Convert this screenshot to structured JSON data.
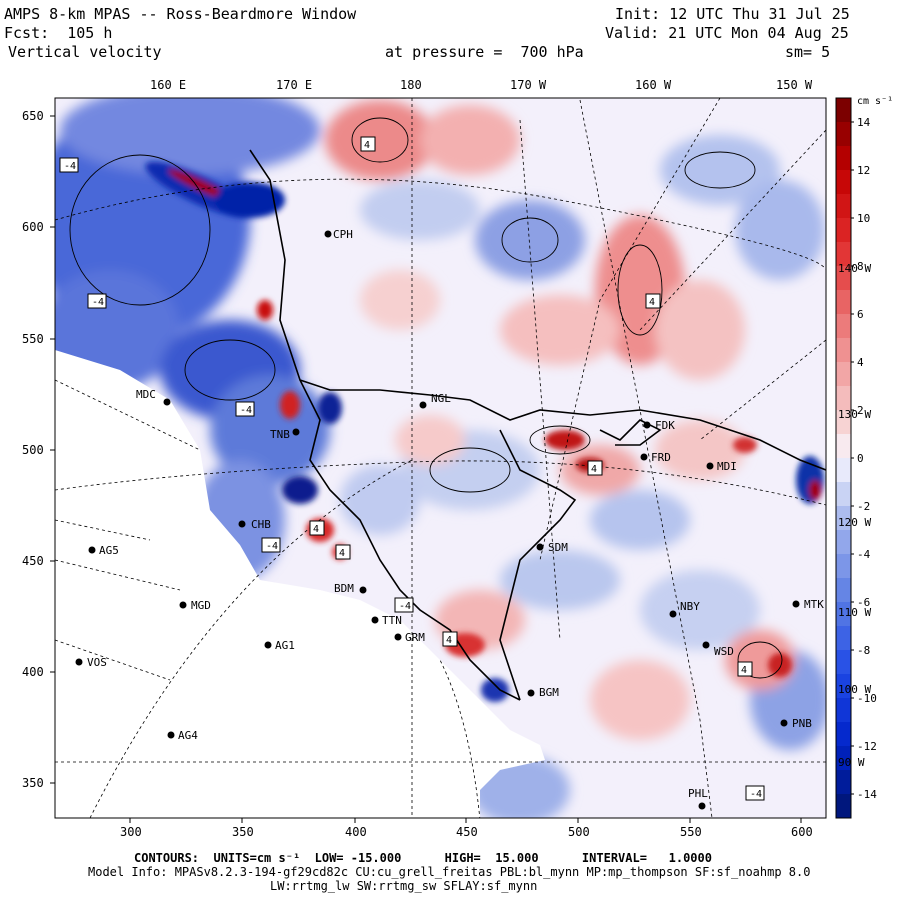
{
  "header": {
    "title": "AMPS 8-km MPAS -- Ross-Beardmore Window",
    "init": "Init: 12 UTC Thu 31 Jul 25",
    "fcst": "Fcst:  105 h",
    "valid": "Valid: 21 UTC Mon 04 Aug 25",
    "field": "Vertical velocity",
    "level": "at pressure =  700 hPa",
    "smooth": "sm= 5"
  },
  "map": {
    "lon_labels_top": [
      "160 E",
      "170 E",
      "180",
      "170 W",
      "160 W",
      "150 W"
    ],
    "lon_labels_right": [
      "140 W",
      "130 W",
      "120 W",
      "110 W",
      "100 W",
      "90 W"
    ],
    "x_ticks": [
      "300",
      "350",
      "400",
      "450",
      "500",
      "550",
      "600"
    ],
    "y_ticks": [
      "650",
      "600",
      "550",
      "500",
      "450",
      "400",
      "350"
    ],
    "stations": [
      {
        "id": "MDC"
      },
      {
        "id": "NGL"
      },
      {
        "id": "FDK"
      },
      {
        "id": "FRD"
      },
      {
        "id": "MDI"
      },
      {
        "id": "TNB"
      },
      {
        "id": "CHB"
      },
      {
        "id": "SDM"
      },
      {
        "id": "AG5"
      },
      {
        "id": "MGD"
      },
      {
        "id": "BDM"
      },
      {
        "id": "TTN"
      },
      {
        "id": "GRM"
      },
      {
        "id": "AG1"
      },
      {
        "id": "VOS"
      },
      {
        "id": "AG4"
      },
      {
        "id": "NBY"
      },
      {
        "id": "WSD"
      },
      {
        "id": "BGM"
      },
      {
        "id": "MTK"
      },
      {
        "id": "PNB"
      },
      {
        "id": "PHL"
      },
      {
        "id": "CPH"
      }
    ],
    "contour_labels": [
      "-4",
      "4"
    ],
    "colors": {
      "strong_up": "#8a0000",
      "up": "#e64545",
      "weak_up": "#f6c6c6",
      "neutral": "#f4f2ff",
      "weak_down": "#b8c6ee",
      "down": "#3b5fd6",
      "strong_down": "#001a9a",
      "no_data": "#ffffff"
    }
  },
  "colorbar": {
    "units": "cm s⁻¹",
    "labels": [
      "14",
      "12",
      "10",
      "8",
      "6",
      "4",
      "2",
      "0",
      "-2",
      "-4",
      "-6",
      "-8",
      "-10",
      "-12",
      "-14"
    ],
    "vmin": -15,
    "vmax": 15
  },
  "footer": {
    "contours": "CONTOURS:  UNITS=cm s⁻¹  LOW= -15.000      HIGH=  15.000      INTERVAL=   1.0000",
    "model_info": "Model Info: MPASv8.2.3-194-gf29cd82c CU:cu_grell_freitas PBL:bl_mynn MP:mp_thompson SF:sf_noahmp 8.0",
    "model_info2": "LW:rrtmg_lw SW:rrtmg_sw SFLAY:sf_mynn"
  }
}
